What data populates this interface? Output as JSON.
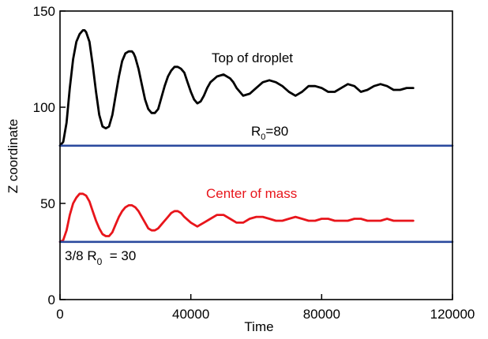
{
  "chart_data": {
    "type": "line",
    "xlabel": "Time",
    "ylabel": "Z coordinate",
    "xlim": [
      0,
      120000
    ],
    "ylim": [
      0,
      150
    ],
    "xticks": [
      0,
      40000,
      80000,
      120000
    ],
    "yticks": [
      0,
      50,
      100,
      150
    ],
    "x_tick_labels": [
      "0",
      "40000",
      "80000",
      "120000"
    ],
    "y_tick_labels": [
      "0",
      "50",
      "100",
      "150"
    ],
    "grid": false,
    "legend": "none",
    "series": [
      {
        "name": "Top of droplet",
        "color": "#000000",
        "x": [
          0,
          1000,
          2000,
          3000,
          4000,
          5000,
          6000,
          7000,
          7500,
          8000,
          9000,
          10000,
          11000,
          12000,
          13000,
          14000,
          15000,
          16000,
          17000,
          18000,
          19000,
          20000,
          21000,
          22000,
          22500,
          23000,
          24000,
          25000,
          26000,
          27000,
          28000,
          29000,
          30000,
          31000,
          32000,
          33000,
          34000,
          35000,
          36000,
          37000,
          38000,
          39000,
          40000,
          41000,
          42000,
          43000,
          44000,
          45000,
          46000,
          48000,
          50000,
          52000,
          53000,
          54000,
          56000,
          58000,
          60000,
          62000,
          64000,
          66000,
          68000,
          70000,
          72000,
          74000,
          76000,
          78000,
          80000,
          82000,
          84000,
          86000,
          88000,
          90000,
          92000,
          94000,
          96000,
          98000,
          100000,
          102000,
          104000,
          106000,
          108000
        ],
        "values": [
          80,
          82,
          92,
          110,
          125,
          134,
          138,
          140,
          140,
          139,
          134,
          122,
          108,
          96,
          90,
          89,
          90,
          96,
          106,
          116,
          124,
          128,
          129,
          129,
          128,
          126,
          120,
          112,
          104,
          99,
          97,
          97,
          99,
          105,
          111,
          116,
          119,
          121,
          121,
          120,
          118,
          113,
          108,
          104,
          102,
          103,
          106,
          110,
          113,
          116,
          117,
          115,
          113,
          110,
          106,
          107,
          110,
          113,
          114,
          113,
          111,
          108,
          106,
          108,
          111,
          111,
          110,
          108,
          108,
          110,
          112,
          111,
          108,
          109,
          111,
          112,
          111,
          109,
          109,
          110,
          110
        ]
      },
      {
        "name": "Center of mass",
        "color": "#e8151b",
        "x": [
          0,
          1000,
          2000,
          3000,
          4000,
          5000,
          6000,
          7000,
          8000,
          9000,
          10000,
          11000,
          12000,
          13000,
          14000,
          15000,
          16000,
          17000,
          18000,
          19000,
          20000,
          21000,
          22000,
          23000,
          24000,
          25000,
          26000,
          27000,
          28000,
          29000,
          30000,
          31000,
          32000,
          33000,
          34000,
          35000,
          36000,
          37000,
          38000,
          40000,
          42000,
          44000,
          46000,
          48000,
          50000,
          52000,
          54000,
          56000,
          58000,
          60000,
          62000,
          64000,
          66000,
          68000,
          70000,
          72000,
          74000,
          76000,
          78000,
          80000,
          82000,
          84000,
          86000,
          88000,
          90000,
          92000,
          94000,
          96000,
          98000,
          100000,
          102000,
          104000,
          106000,
          108000
        ],
        "values": [
          30,
          31,
          36,
          44,
          50,
          53,
          55,
          55,
          54,
          51,
          46,
          41,
          37,
          34,
          33,
          33,
          35,
          39,
          43,
          46,
          48,
          49,
          49,
          48,
          46,
          43,
          40,
          37,
          36,
          36,
          37,
          39,
          41,
          43,
          45,
          46,
          46,
          45,
          43,
          40,
          38,
          40,
          42,
          44,
          44,
          42,
          40,
          40,
          42,
          43,
          43,
          42,
          41,
          41,
          42,
          43,
          42,
          41,
          41,
          42,
          42,
          41,
          41,
          41,
          42,
          42,
          41,
          41,
          41,
          42,
          41,
          41,
          41,
          41
        ]
      },
      {
        "name": "R0=80",
        "color": "#2b4a9e",
        "x": [
          0,
          120000
        ],
        "values": [
          80,
          80
        ]
      },
      {
        "name": "3/8 R0 = 30",
        "color": "#2b4a9e",
        "x": [
          0,
          120000
        ],
        "values": [
          30,
          30
        ]
      }
    ],
    "annotations": {
      "top_label": "Top of droplet",
      "com_label": "Center of mass",
      "r0_label_main": "R",
      "r0_label_sub": "0",
      "r0_label_rest": "=80",
      "r38_label_main": "3/8 R",
      "r38_label_sub": "0",
      "r38_label_rest": "  = 30"
    }
  }
}
